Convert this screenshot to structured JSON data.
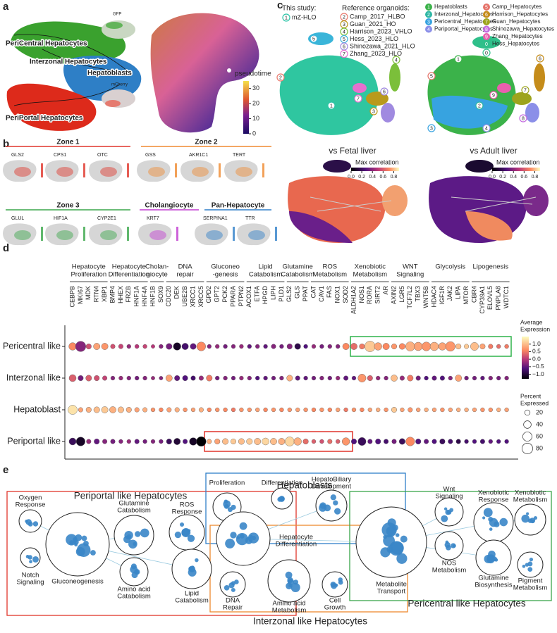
{
  "panel_labels": [
    "a",
    "b",
    "c",
    "d",
    "e"
  ],
  "a": {
    "clusters": [
      "PeriCentral Hepatocytes",
      "Interzonal Hepatocytes",
      "Hepatoblasts",
      "PeriPortal Hepatocytes"
    ],
    "insets": [
      "GFP",
      "mCherry"
    ],
    "pseudotime": {
      "title": "pseudotime",
      "clim": [
        0,
        35
      ],
      "ticks": [
        0,
        10,
        20,
        30
      ]
    }
  },
  "b": {
    "zones": [
      {
        "title": "Zone 1",
        "color": "#e0352b",
        "genes": [
          "GLS2",
          "CPS1",
          "OTC"
        ]
      },
      {
        "title": "Zone 2",
        "color": "#ef8a30",
        "genes": [
          "GSS",
          "AKR1C1",
          "TERT"
        ]
      },
      {
        "title": "Zone 3",
        "color": "#3aa64a",
        "genes": [
          "GLUL",
          "HIF1A",
          "CYP2E1"
        ]
      },
      {
        "title": "Cholangiocyte",
        "color": "#c03bd0",
        "genes": [
          "KRT7"
        ]
      },
      {
        "title": "Pan-Hepatocyte",
        "color": "#2f7fc8",
        "genes": [
          "SERPINA1",
          "TTR"
        ]
      }
    ]
  },
  "c": {
    "this_study_title": "This study:",
    "this_study": [
      {
        "n": "1",
        "name": "mZ-HLO",
        "color": "#2ec4a8"
      }
    ],
    "reference_title": "Reference organoids:",
    "reference": [
      {
        "n": "2",
        "name": "Camp_2017_HLBO",
        "color": "#e97a6e"
      },
      {
        "n": "3",
        "name": "Guan_2021_HO",
        "color": "#b99a1c"
      },
      {
        "n": "4",
        "name": "Harrison_2023_VHLO",
        "color": "#7bbf3a"
      },
      {
        "n": "5",
        "name": "Hess_2023_HLO",
        "color": "#3ab5d9"
      },
      {
        "n": "6",
        "name": "Shinozawa_2021_HLO",
        "color": "#a08ae0"
      },
      {
        "n": "7",
        "name": "Zhang_2023_HLO",
        "color": "#e76fcf"
      }
    ],
    "clusters": [
      {
        "n": "1",
        "name": "Hepatoblasts",
        "color": "#3bb24a"
      },
      {
        "n": "2",
        "name": "Interzonal_Hepatocytes",
        "color": "#2fb7a4"
      },
      {
        "n": "3",
        "name": "Pericentral_Hepatocytes",
        "color": "#37a3e0"
      },
      {
        "n": "4",
        "name": "Periportal_Hepatocytes",
        "color": "#8b8fe8"
      },
      {
        "n": "5",
        "name": "Camp_Hepatocytes",
        "color": "#e5736a"
      },
      {
        "n": "6",
        "name": "Harrison_Hepatocytes",
        "color": "#c58c1a"
      },
      {
        "n": "7",
        "name": "Guan_Hepatocytes",
        "color": "#9da41c"
      },
      {
        "n": "8",
        "name": "Shinozawa_Hepatocytes",
        "color": "#c56ce0"
      },
      {
        "n": "9",
        "name": "Zhang_Hepatocytes",
        "color": "#e95fae"
      },
      {
        "n": "0",
        "name": "Hess_Hepatocytes",
        "color": "#2fbf8a"
      }
    ],
    "comparisons": [
      "vs Fetal liver",
      "vs Adult liver"
    ],
    "correlation": {
      "title": "Max correlation",
      "clim": [
        0,
        0.9
      ],
      "ticks": [
        {
          "value": 0,
          "label": "0.0"
        },
        0.2,
        0.4,
        0.6,
        0.8
      ]
    }
  },
  "d": {
    "groups": [
      {
        "label": [
          "Hepatocyte",
          "Proliferation"
        ],
        "genes": [
          "CEBPB",
          "MKI67",
          "MDK",
          "RTN4",
          "XBP1"
        ]
      },
      {
        "label": [
          "Hepatocyte",
          "Differentiation"
        ],
        "genes": [
          "BMP4",
          "HHEX",
          "FRZB",
          "HNF1A",
          "HNF4A"
        ]
      },
      {
        "label": [
          "Cholan-",
          "giocyte"
        ],
        "genes": [
          "HNF1B",
          "SOX9"
        ]
      },
      {
        "label": [
          "DNA",
          "repair"
        ],
        "genes": [
          "CDC20",
          "DEK",
          "UBE2B",
          "XRCC1",
          "XRCC5"
        ]
      },
      {
        "label": [
          "Gluconeo",
          "-genesis"
        ],
        "genes": [
          "GPD2",
          "GPT2",
          "PCK2",
          "PPARA",
          "PTPN2"
        ]
      },
      {
        "label": [
          "Lipid",
          "Catabolism"
        ],
        "genes": [
          "ACOX1",
          "ETFA",
          "HPGD",
          "LIPH",
          "PLD1"
        ]
      },
      {
        "label": [
          "Glutamine",
          "Catabolism"
        ],
        "genes": [
          "GLS2",
          "GLS",
          "PPAT"
        ]
      },
      {
        "label": [
          "ROS",
          "Metabolism"
        ],
        "genes": [
          "CAT",
          "CAV1",
          "FAS",
          "NOX1",
          "SOD2"
        ]
      },
      {
        "label": [
          "Xenobiotic",
          "Metabolism"
        ],
        "genes": [
          "ALDH1A2",
          "NOS1",
          "RORA",
          "SIRT2",
          "AR"
        ]
      },
      {
        "label": [
          "WNT",
          "Signaling"
        ],
        "genes": [
          "AXIN2",
          "LGR5",
          "TCF7L2",
          "TBX3",
          "WNT5B"
        ]
      },
      {
        "label": [
          "Glycolysis"
        ],
        "genes": [
          "HDAC4",
          "IGF1R",
          "JAK2",
          "LIPA",
          "MTOR"
        ]
      },
      {
        "label": [
          "Lipogenesis"
        ],
        "genes": [
          "CBR4",
          "CYP39A1",
          "ELOVL5",
          "PNPLA8",
          "WDTC1"
        ]
      }
    ],
    "rows": [
      {
        "name": "Pericentral like",
        "color": "#3aa64a"
      },
      {
        "name": "Interzonal like",
        "color": "#ef8a30"
      },
      {
        "name": "Hepatoblast",
        "color": "#2f7fc8"
      },
      {
        "name": "Periportal like",
        "color": "#e0352b"
      }
    ],
    "expression": [
      [
        0.6,
        -0.3,
        0.2,
        0.8,
        0.7,
        0.2,
        0.1,
        -0.2,
        0,
        0.1,
        0,
        -0.3,
        -0.4,
        -1.1,
        -0.7,
        -0.5,
        0.6,
        -0.3,
        -0.2,
        -0.4,
        -0.3,
        -0.2,
        -0.5,
        -0.3,
        -0.5,
        -0.3,
        -0.4,
        -0.3,
        -0.9,
        -0.6,
        -0.2,
        -0.4,
        -0.3,
        -0.3,
        0.6,
        0.4,
        0.5,
        1.1,
        0.8,
        0.6,
        0.7,
        0.6,
        0.9,
        0.8,
        0.7,
        0.9,
        0.8,
        0.7,
        1.0,
        1.1,
        1.0,
        0.8,
        0.5,
        0.4,
        0.5
      ],
      [
        0.3,
        -0.4,
        0.3,
        0.2,
        0.1,
        -0.3,
        -0.2,
        -0.3,
        -0.4,
        -0.3,
        -0.2,
        -0.3,
        0.8,
        -0.5,
        -0.6,
        -0.7,
        -0.2,
        0.5,
        -0.4,
        -0.3,
        -0.4,
        -0.2,
        -0.3,
        -0.6,
        -0.5,
        -0.4,
        -0.3,
        0.9,
        -0.5,
        -0.5,
        -0.4,
        -0.3,
        -0.4,
        -0.2,
        -0.5,
        -0.5,
        0.7,
        0.3,
        -0.2,
        -0.3,
        1.0,
        -0.2,
        0.5,
        -0.4,
        -0.6,
        -0.5,
        -0.6,
        -0.3,
        0.8,
        -0.4,
        -0.4,
        -0.5,
        -0.3,
        -0.4,
        -0.3
      ],
      [
        1.3,
        0.8,
        0.9,
        1.0,
        1.1,
        0.9,
        1.0,
        0.9,
        0.8,
        0.9,
        0.7,
        0.6,
        0.8,
        0.9,
        0.7,
        0.8,
        0.9,
        0.6,
        0.7,
        0.6,
        0.5,
        0.7,
        0.7,
        0.8,
        0.6,
        0.7,
        0.6,
        0.7,
        0.8,
        0.7,
        0.6,
        0.7,
        0.6,
        0.8,
        0.5,
        0.7,
        0.6,
        0.8,
        0.9,
        0.7,
        1.1,
        0.8,
        0.7,
        0.8,
        0.9,
        0.8,
        0.7,
        0.8,
        0.9,
        0.9,
        0.8,
        0.7,
        0.7,
        0.9,
        0.8
      ],
      [
        -0.8,
        -1.1,
        -0.2,
        -0.5,
        -0.3,
        -0.4,
        -0.3,
        -0.2,
        -0.5,
        -0.4,
        -0.3,
        -0.4,
        -0.8,
        -1.0,
        -0.6,
        -1.1,
        -1.3,
        0.9,
        0.8,
        1.0,
        1.1,
        1.0,
        1.1,
        1.0,
        1.2,
        1.0,
        0.9,
        1.2,
        0.9,
        0.4,
        0.3,
        0.2,
        0.4,
        0.3,
        0.7,
        -0.6,
        -0.8,
        -0.5,
        -0.6,
        -0.7,
        -0.4,
        -0.8,
        0.6,
        -0.6,
        -0.5,
        -0.6,
        -0.8,
        -0.7,
        -0.9,
        -0.7,
        -0.6,
        -0.7,
        -0.5,
        -0.6,
        -0.6
      ]
    ],
    "percent": [
      [
        40,
        75,
        20,
        30,
        30,
        15,
        15,
        12,
        12,
        12,
        10,
        12,
        25,
        40,
        30,
        25,
        55,
        12,
        12,
        12,
        12,
        12,
        12,
        12,
        12,
        15,
        12,
        20,
        25,
        12,
        12,
        12,
        12,
        12,
        30,
        30,
        20,
        80,
        40,
        30,
        20,
        25,
        60,
        50,
        55,
        50,
        40,
        65,
        20,
        15,
        45,
        20,
        15,
        12,
        12
      ],
      [
        35,
        20,
        25,
        20,
        15,
        12,
        12,
        12,
        12,
        12,
        10,
        10,
        30,
        20,
        20,
        15,
        15,
        25,
        12,
        12,
        12,
        12,
        12,
        12,
        12,
        12,
        12,
        25,
        15,
        12,
        12,
        12,
        12,
        12,
        15,
        12,
        45,
        20,
        12,
        12,
        30,
        15,
        25,
        15,
        12,
        15,
        15,
        12,
        30,
        12,
        12,
        12,
        12,
        12,
        12
      ],
      [
        60,
        15,
        20,
        25,
        30,
        30,
        25,
        20,
        15,
        15,
        12,
        12,
        15,
        15,
        12,
        12,
        15,
        12,
        12,
        12,
        12,
        12,
        12,
        12,
        12,
        12,
        12,
        12,
        12,
        12,
        12,
        12,
        12,
        12,
        12,
        12,
        12,
        12,
        12,
        12,
        20,
        12,
        15,
        12,
        12,
        12,
        12,
        12,
        12,
        12,
        12,
        12,
        12,
        12,
        12
      ],
      [
        35,
        55,
        15,
        20,
        15,
        15,
        12,
        12,
        15,
        12,
        12,
        12,
        20,
        30,
        15,
        40,
        65,
        15,
        20,
        25,
        20,
        25,
        25,
        30,
        35,
        30,
        30,
        60,
        40,
        20,
        12,
        12,
        15,
        12,
        40,
        20,
        45,
        15,
        20,
        15,
        15,
        25,
        55,
        20,
        15,
        15,
        20,
        15,
        15,
        12,
        12,
        15,
        12,
        12,
        12
      ]
    ],
    "color_legend": {
      "title": [
        "Average",
        "Expression"
      ],
      "clim": [
        -1.3,
        1.5
      ],
      "ticks": [
        {
          "value": 1,
          "label": "1.0"
        },
        0.5,
        {
          "value": 0,
          "label": "0.0"
        },
        {
          "value": -0.5,
          "label": "−0.5"
        },
        {
          "value": -1,
          "label": "−1.0"
        }
      ]
    },
    "size_legend": {
      "title": [
        "Percent",
        "Expressed"
      ],
      "ticks": [
        20,
        40,
        60,
        80
      ]
    }
  },
  "e": {
    "clusters": [
      {
        "name": "Periportal like Hepatocytes",
        "color": "#e0352b"
      },
      {
        "name": "Hepatoblasts",
        "color": "#2f7fc8"
      },
      {
        "name": "Interzonal like Hepatocytes",
        "color": "#ef8a30"
      },
      {
        "name": "Pericentral like Hepatocytes",
        "color": "#3aa64a"
      }
    ],
    "terms": [
      [
        "Oxygen",
        "Response"
      ],
      [
        "Notch",
        "Signaling"
      ],
      [
        "Gluconeogenesis"
      ],
      [
        "Glutamine",
        "Catabolism"
      ],
      [
        "Amino acid",
        "Catabolism"
      ],
      [
        "ROS",
        "Response"
      ],
      [
        "Lipid",
        "Catabolism"
      ],
      [
        "Proliferation"
      ],
      [
        "Differentiation"
      ],
      [
        "HepatoBiliary",
        "Development"
      ],
      [
        "Hepatocyte",
        "Differentiation"
      ],
      [
        "DNA",
        "Repair"
      ],
      [
        "Amino acid",
        "Metabolism"
      ],
      [
        "Cell",
        "Growth"
      ],
      [
        "Metabolite",
        "Transport"
      ],
      [
        "Wnt",
        "Signaling"
      ],
      [
        "NOS",
        "Metabolism"
      ],
      [
        "Xenobiotic",
        "Response"
      ],
      [
        "Xenobiotic",
        "Metabolism"
      ],
      [
        "Glutamine",
        "Biosynthesis"
      ],
      [
        "Pigment",
        "Metabolism"
      ]
    ]
  }
}
